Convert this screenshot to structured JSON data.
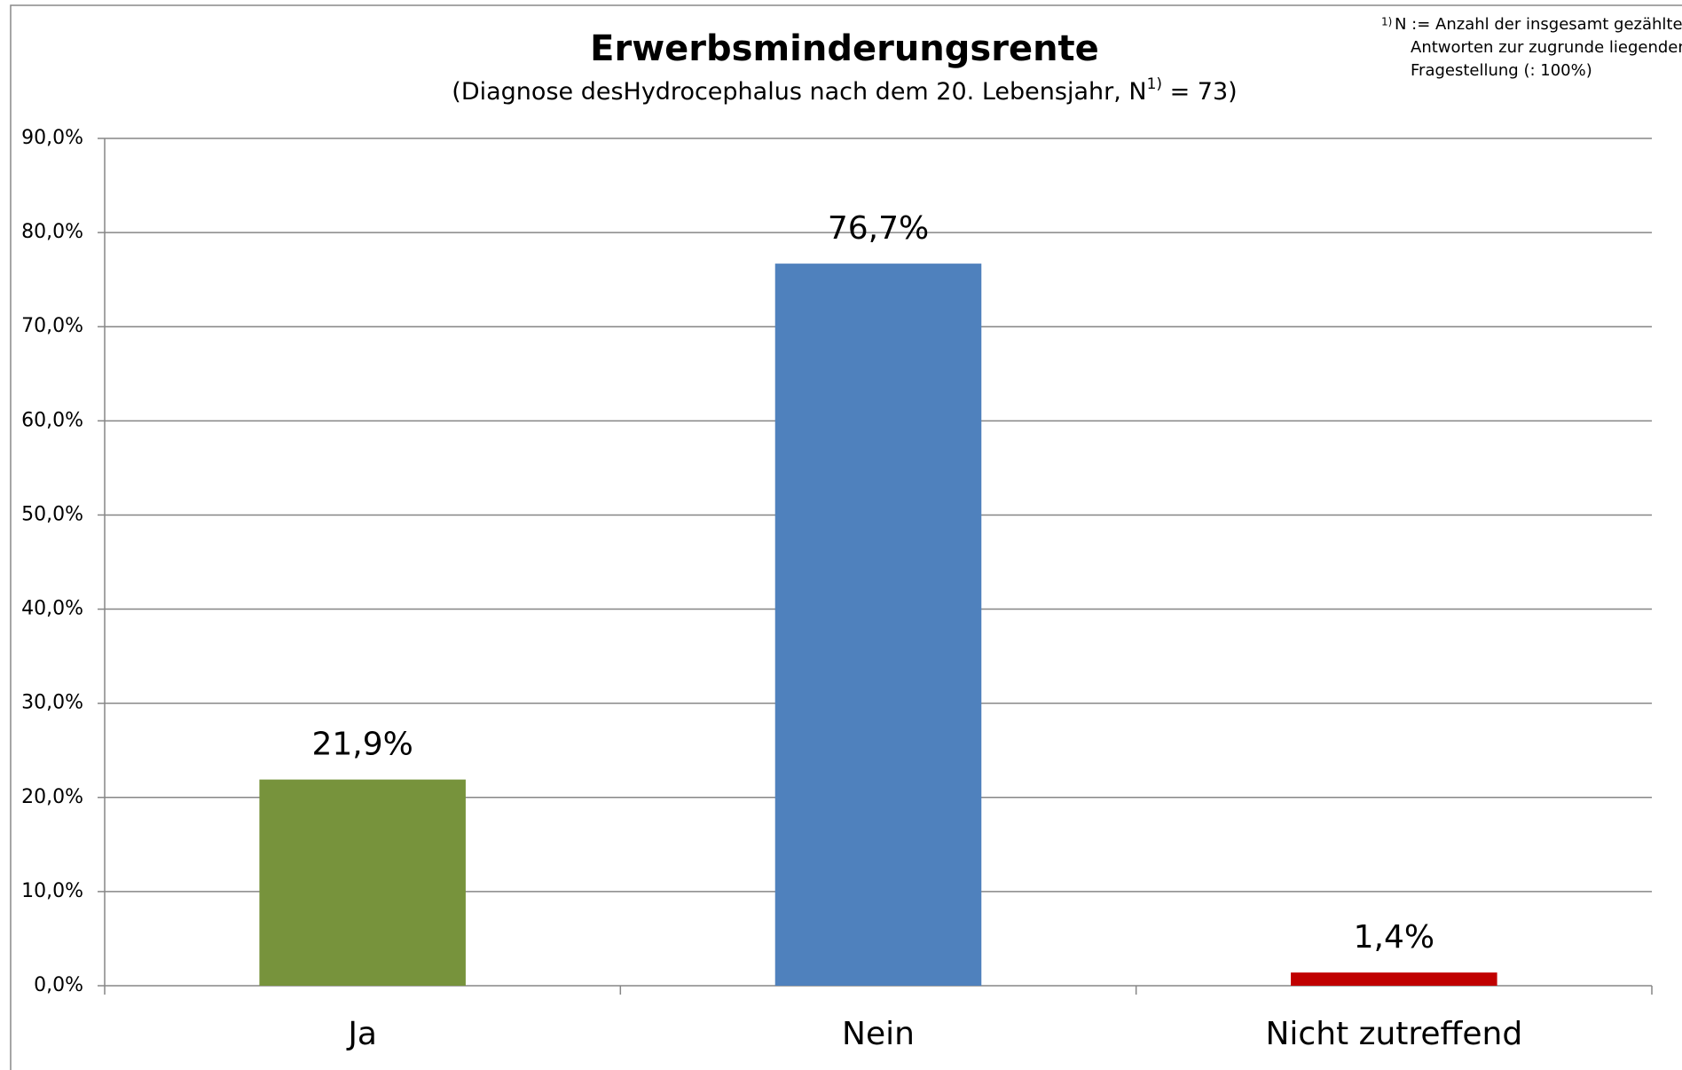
{
  "chart_data": {
    "type": "bar",
    "title": "Erwerbsminderungsrente",
    "subtitle": [
      "(Diagnose desHydrocephalus nach dem 20. Lebensjahr, N",
      "1)",
      " = 73)"
    ],
    "footnote": {
      "marker": "1)",
      "lines": [
        "N := Anzahl der insgesamt gezählten",
        "Antworten zur zugrunde liegenden",
        "Fragestellung (: 100%)"
      ]
    },
    "categories": [
      "Ja",
      "Nein",
      "Nicht zutreffend"
    ],
    "values": [
      21.9,
      76.7,
      1.4
    ],
    "value_labels": [
      "21,9%",
      "76,7%",
      "1,4%"
    ],
    "colors": [
      "#77933c",
      "#4f81bd",
      "#c00000"
    ],
    "ylim": [
      0,
      90
    ],
    "yticks": [
      {
        "value": 0,
        "label": "0,0%"
      },
      {
        "value": 10,
        "label": "10,0%"
      },
      {
        "value": 20,
        "label": "20,0%"
      },
      {
        "value": 30,
        "label": "30,0%"
      },
      {
        "value": 40,
        "label": "40,0%"
      },
      {
        "value": 50,
        "label": "50,0%"
      },
      {
        "value": 60,
        "label": "60,0%"
      },
      {
        "value": 70,
        "label": "70,0%"
      },
      {
        "value": 80,
        "label": "80,0%"
      },
      {
        "value": 90,
        "label": "90,0%"
      }
    ],
    "grid": true
  }
}
